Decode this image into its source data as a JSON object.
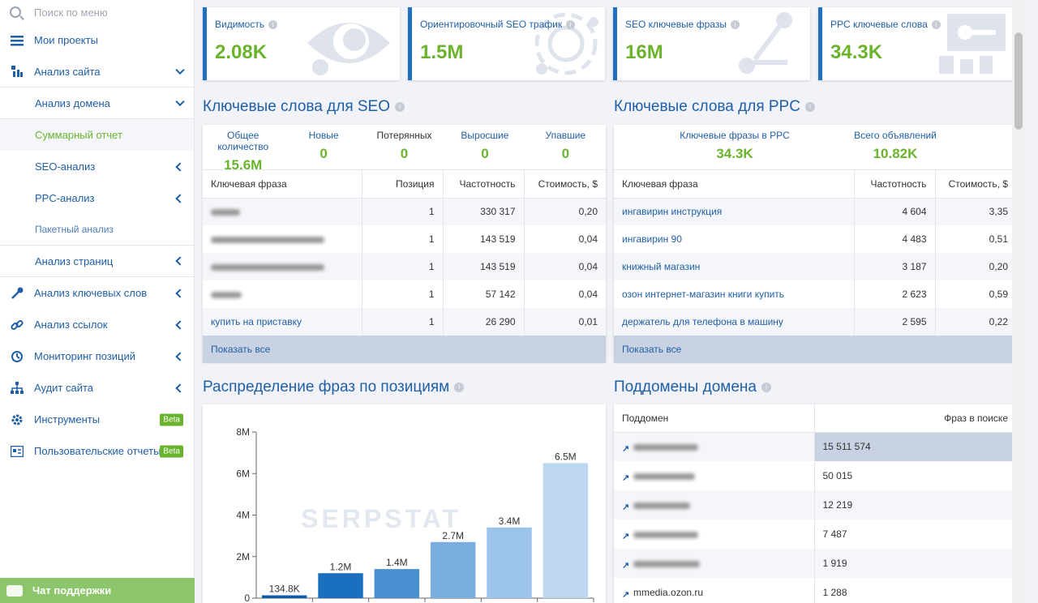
{
  "sidebar": {
    "search_placeholder": "Поиск по меню",
    "items": [
      {
        "label": "Мои проекты"
      },
      {
        "label": "Анализ сайта"
      },
      {
        "label": "Анализ домена"
      },
      {
        "label": "Суммарный отчет"
      },
      {
        "label": "SEO-анализ"
      },
      {
        "label": "PPC-анализ"
      },
      {
        "label": "Пакетный анализ"
      },
      {
        "label": "Анализ страниц"
      },
      {
        "label": "Анализ ключевых слов"
      },
      {
        "label": "Анализ ссылок"
      },
      {
        "label": "Мониторинг позиций"
      },
      {
        "label": "Аудит сайта"
      },
      {
        "label": "Инструменты",
        "badge": "Beta"
      },
      {
        "label": "Пользовательские отчеты",
        "badge": "Beta"
      }
    ],
    "chat_label": "Чат поддержки"
  },
  "kpis": [
    {
      "label": "Видимость",
      "value": "2.08K"
    },
    {
      "label": "Ориентировочный SEO трафик",
      "value": "1.5M"
    },
    {
      "label": "SEO ключевые фразы",
      "value": "16M"
    },
    {
      "label": "PPC ключевые слова",
      "value": "34.3K"
    }
  ],
  "seo": {
    "title": "Ключевые слова для SEO",
    "stats": [
      {
        "label": "Общее количество",
        "value": "15.6M"
      },
      {
        "label": "Новые",
        "value": "0"
      },
      {
        "label": "Потерянных",
        "value": "0"
      },
      {
        "label": "Выросшие",
        "value": "0"
      },
      {
        "label": "Упавшие",
        "value": "0"
      }
    ],
    "headers": [
      "Ключевая фраза",
      "Позиция",
      "Частотность",
      "Стоимость, $"
    ],
    "rows": [
      {
        "phrase": "",
        "pos": "1",
        "freq": "330 317",
        "cost": "0,20"
      },
      {
        "phrase": "",
        "pos": "1",
        "freq": "143 519",
        "cost": "0,04"
      },
      {
        "phrase": "",
        "pos": "1",
        "freq": "143 519",
        "cost": "0,04"
      },
      {
        "phrase": "",
        "pos": "1",
        "freq": "57 142",
        "cost": "0,04"
      },
      {
        "phrase": "купить на приставку",
        "pos": "1",
        "freq": "26 290",
        "cost": "0,01"
      }
    ],
    "show_all": "Показать все"
  },
  "ppc": {
    "title": "Ключевые слова для PPC",
    "stats": [
      {
        "label": "Ключевые фразы в PPC",
        "value": "34.3K"
      },
      {
        "label": "Всего объявлений",
        "value": "10.82K"
      }
    ],
    "headers": [
      "Ключевая фраза",
      "Частотность",
      "Стоимость, $"
    ],
    "rows": [
      {
        "phrase": "ингавирин инструкция",
        "freq": "4 604",
        "cost": "3,35"
      },
      {
        "phrase": "ингавирин 90",
        "freq": "4 483",
        "cost": "0,51"
      },
      {
        "phrase": "книжный магазин",
        "freq": "3 187",
        "cost": "0,20"
      },
      {
        "phrase": "озон интернет-магазин книги купить",
        "freq": "2 623",
        "cost": "0,59"
      },
      {
        "phrase": "держатель для телефона в машину",
        "freq": "2 595",
        "cost": "0,22"
      }
    ],
    "show_all": "Показать все"
  },
  "distribution": {
    "title": "Распределение фраз по позициям",
    "watermark": "SERPSTAT"
  },
  "subdomains": {
    "title": "Поддомены домена",
    "headers": [
      "Поддомен",
      "Фраз в поиске"
    ],
    "rows": [
      {
        "name": "",
        "count": "15 511 574"
      },
      {
        "name": "",
        "count": "50 015"
      },
      {
        "name": "",
        "count": "12 219"
      },
      {
        "name": "",
        "count": "7 487"
      },
      {
        "name": "",
        "count": "1 919"
      },
      {
        "name": "mmedia.ozon.ru",
        "count": "1 288"
      }
    ]
  },
  "chart_data": {
    "type": "bar",
    "categories": [
      "",
      "",
      "",
      "",
      "",
      ""
    ],
    "values": [
      134.8,
      1200,
      1400,
      2700,
      3400,
      6500
    ],
    "value_labels": [
      "134.8K",
      "1.2M",
      "1.4M",
      "2.7M",
      "3.4M",
      "6.5M"
    ],
    "ytick_labels": [
      "0",
      "2M",
      "4M",
      "6M",
      "8M"
    ],
    "yticks": [
      0,
      2000,
      4000,
      6000,
      8000
    ],
    "ylim": [
      0,
      8000
    ],
    "colors": [
      "#0d5ba8",
      "#1a6fc0",
      "#4a8fd0",
      "#78aee0",
      "#9cc4ea",
      "#bdd7f0"
    ],
    "grid": false
  }
}
